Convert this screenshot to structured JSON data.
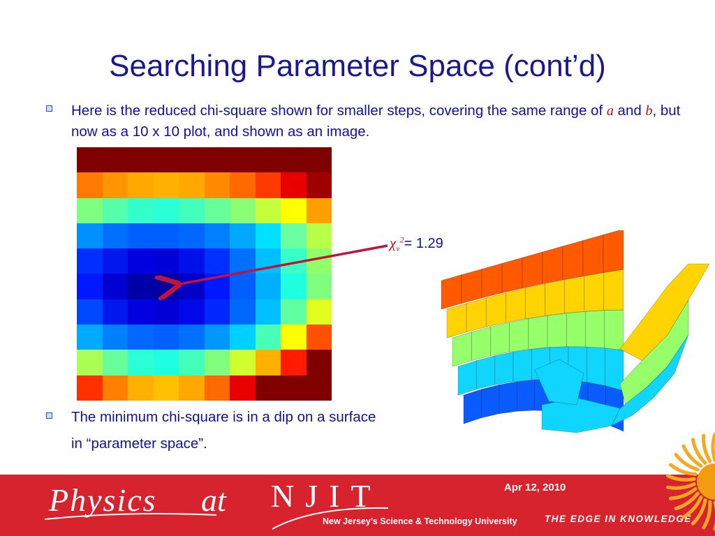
{
  "title": "Searching Parameter Space (cont’d)",
  "bullets": {
    "first": {
      "text1": "Here is the reduced chi-square shown for smaller steps, covering the same range of ",
      "var_a": "a",
      "text2": " and ",
      "var_b": "b",
      "text3": ", but now as a 10 x 10 plot, and shown as an image."
    },
    "second": {
      "line1": "The minimum chi-square is in a dip on a surface",
      "line2": "in “parameter space”."
    }
  },
  "annotation": {
    "symbol": "χ",
    "subscript": "ν",
    "superscript": "2",
    "value_text": "= 1.29"
  },
  "heatmap_colors": [
    [
      "#800000",
      "#800000",
      "#800000",
      "#800000",
      "#800000",
      "#800000",
      "#800000",
      "#800000",
      "#800000",
      "#800000"
    ],
    [
      "#ff7a00",
      "#ff9500",
      "#ffa800",
      "#ffb000",
      "#ffa800",
      "#ff8a00",
      "#ff6a00",
      "#ff3a00",
      "#e80000",
      "#a00000"
    ],
    [
      "#7fff7f",
      "#55ffaa",
      "#33ffcc",
      "#2affd5",
      "#44ffbb",
      "#66ff99",
      "#8aff75",
      "#c5ff3a",
      "#ffff00",
      "#ffa000"
    ],
    [
      "#0090ff",
      "#0070ff",
      "#0060ff",
      "#0060ff",
      "#0068ff",
      "#0080ff",
      "#00a8ff",
      "#00e0ff",
      "#6affa0",
      "#b8ff48"
    ],
    [
      "#0030ff",
      "#0018ee",
      "#0000e0",
      "#0000d8",
      "#0010ea",
      "#0030ff",
      "#0070ff",
      "#00c0ff",
      "#3affc8",
      "#90ff6a"
    ],
    [
      "#0018ff",
      "#0000d0",
      "#0000a8",
      "#0000a0",
      "#0000c8",
      "#0018ff",
      "#0060ff",
      "#00b0ff",
      "#20ffe0",
      "#80ff7f"
    ],
    [
      "#0048ff",
      "#0018f0",
      "#0000e0",
      "#0000d4",
      "#0008ea",
      "#0028ff",
      "#0068ff",
      "#00c0ff",
      "#60ffa0",
      "#e0ff20"
    ],
    [
      "#00aaff",
      "#0080ff",
      "#0068ff",
      "#0060ff",
      "#0070ff",
      "#0098ff",
      "#00d0ff",
      "#48ffb8",
      "#ffff00",
      "#ff5000"
    ],
    [
      "#aaff55",
      "#66ff99",
      "#2affd5",
      "#20ffe0",
      "#44ffbb",
      "#80ff7f",
      "#d0ff30",
      "#ffb000",
      "#ff1a00",
      "#800000"
    ],
    [
      "#ff3000",
      "#ff8000",
      "#ffb000",
      "#ffc000",
      "#ffa800",
      "#ff6a00",
      "#e80000",
      "#800000",
      "#800000",
      "#800000"
    ]
  ],
  "surface_bands": [
    "#ff5a00",
    "#ffd400",
    "#96ff6a",
    "#10d6ff",
    "#0a5cff"
  ],
  "footer": {
    "date": "Apr 12, 2010",
    "logo_physics": "Physics",
    "logo_at": "at",
    "logo_njit": "NJIT",
    "njit_subtitle": "New Jersey’s Science & Technology University",
    "tagline": "THE EDGE IN KNOWLEDGE",
    "background": "#d6232e"
  },
  "colors": {
    "title": "#1a1a8c",
    "text": "#111199",
    "arrow": "#c0143c"
  }
}
